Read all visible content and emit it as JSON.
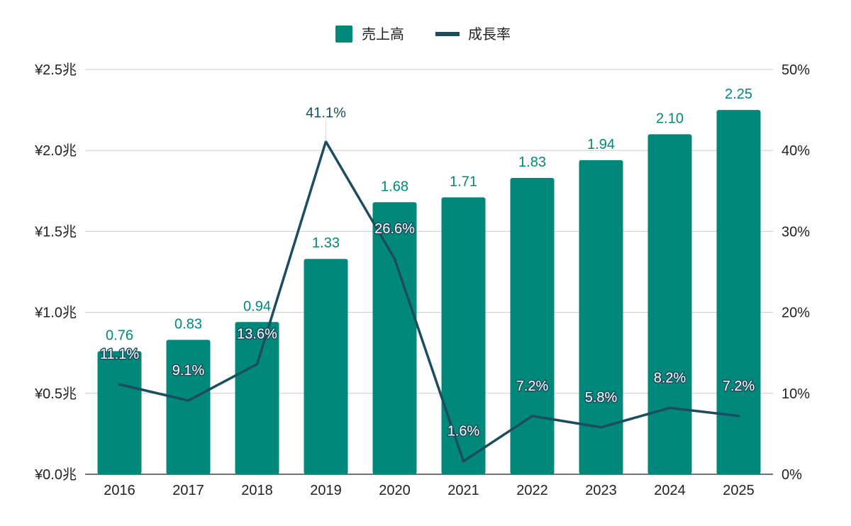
{
  "chart_data": {
    "type": "bar",
    "categories": [
      "2016",
      "2017",
      "2018",
      "2019",
      "2020",
      "2021",
      "2022",
      "2023",
      "2024",
      "2025"
    ],
    "series": [
      {
        "name": "売上高",
        "type": "bar",
        "axis": "left",
        "color": "#00897b",
        "values": [
          0.76,
          0.83,
          0.94,
          1.33,
          1.68,
          1.71,
          1.83,
          1.94,
          2.1,
          2.25
        ],
        "labels": [
          "0.76",
          "0.83",
          "0.94",
          "1.33",
          "1.68",
          "1.71",
          "1.83",
          "1.94",
          "2.10",
          "2.25"
        ]
      },
      {
        "name": "成長率",
        "type": "line",
        "axis": "right",
        "color": "#1b4d5e",
        "values": [
          11.1,
          9.1,
          13.6,
          41.1,
          26.6,
          1.6,
          7.2,
          5.8,
          8.2,
          7.2
        ],
        "labels": [
          "11.1%",
          "9.1%",
          "13.6%",
          "41.1%",
          "26.6%",
          "1.6%",
          "7.2%",
          "5.8%",
          "8.2%",
          "7.2%"
        ]
      }
    ],
    "y_left": {
      "ylim": [
        0,
        2.5
      ],
      "ticks": [
        0,
        0.5,
        1.0,
        1.5,
        2.0,
        2.5
      ],
      "tick_labels": [
        "¥0.0兆",
        "¥0.5兆",
        "¥1.0兆",
        "¥1.5兆",
        "¥2.0兆",
        "¥2.5兆"
      ]
    },
    "y_right": {
      "ylim": [
        0,
        50
      ],
      "ticks": [
        0,
        10,
        20,
        30,
        40,
        50
      ],
      "tick_labels": [
        "0%",
        "10%",
        "20%",
        "30%",
        "40%",
        "50%"
      ]
    },
    "grid": true,
    "legend": "top-center"
  }
}
